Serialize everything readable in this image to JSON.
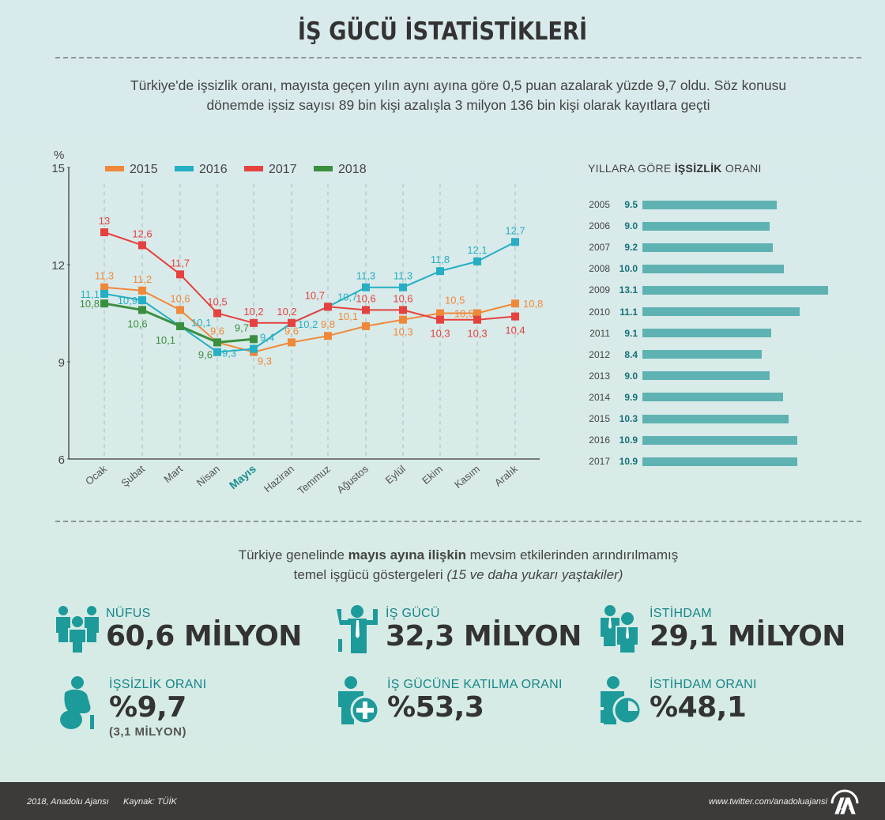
{
  "header": {
    "title": "İŞ GÜCÜ İSTATİSTİKLERİ",
    "intro_line1": "Türkiye'de işsizlik oranı, mayısta geçen yılın aynı ayına göre 0,5 puan azalarak yüzde 9,7 oldu. Söz konusu",
    "intro_line2": "dönemde işsiz sayısı 89 bin kişi azalışla 3 milyon 136 bin kişi olarak kayıtlara geçti"
  },
  "chart_data": [
    {
      "type": "line",
      "title": "",
      "ylabel": "%",
      "xlabel": "",
      "ylim": [
        6,
        15
      ],
      "yticks": [
        6,
        9,
        12,
        15
      ],
      "grid": "vertical dashed",
      "legend_position": "top",
      "highlight_category": "Mayıs",
      "categories": [
        "Ocak",
        "Şubat",
        "Mart",
        "Nisan",
        "Mayıs",
        "Haziran",
        "Temmuz",
        "Ağustos",
        "Eylül",
        "Ekim",
        "Kasım",
        "Aralık"
      ],
      "series": [
        {
          "name": "2015",
          "color": "#f0883a",
          "values": [
            11.3,
            11.2,
            10.6,
            9.6,
            9.3,
            9.6,
            9.8,
            10.1,
            10.3,
            10.5,
            10.5,
            10.8
          ],
          "labels": [
            "11,3",
            "11,2",
            "10,6",
            "9,6",
            "9,3",
            "9,6",
            "9,8",
            "10,1",
            "10,3",
            "10,5",
            "10,5",
            "10,8"
          ]
        },
        {
          "name": "2016",
          "color": "#25aec4",
          "values": [
            11.1,
            10.9,
            10.1,
            9.3,
            9.4,
            10.2,
            10.7,
            11.3,
            11.3,
            11.8,
            12.1,
            12.7
          ],
          "labels": [
            "11,1",
            "10,9",
            "10,1",
            "9,3",
            "9,4",
            "10,2",
            "10,7",
            "11,3",
            "11,3",
            "11,8",
            "12,1",
            "12,7"
          ]
        },
        {
          "name": "2017",
          "color": "#e5413f",
          "values": [
            13.0,
            12.6,
            11.7,
            10.5,
            10.2,
            10.2,
            10.7,
            10.6,
            10.6,
            10.3,
            10.3,
            10.4
          ],
          "labels": [
            "13",
            "12,6",
            "11,7",
            "10,5",
            "10,2",
            "10,2",
            "10,7",
            "10,6",
            "10,6",
            "10,3",
            "10,3",
            "10,4"
          ]
        },
        {
          "name": "2018",
          "color": "#3a8f3f",
          "values": [
            10.8,
            10.6,
            10.1,
            9.6,
            9.7
          ],
          "labels": [
            "10,8",
            "10,6",
            "10,1",
            "9,6",
            "9,7"
          ]
        }
      ]
    },
    {
      "type": "bar",
      "orientation": "horizontal",
      "title": "YILLARA GÖRE İŞSİZLİK ORANI",
      "title_plain_before": "YILLARA GÖRE ",
      "title_bold": "İŞSİZLİK",
      "title_plain_after": " ORANI",
      "bar_color": "#5fb2b2",
      "categories": [
        "2005",
        "2006",
        "2007",
        "2008",
        "2009",
        "2010",
        "2011",
        "2012",
        "2013",
        "2014",
        "2015",
        "2016",
        "2017"
      ],
      "values": [
        9.5,
        9.0,
        9.2,
        10.0,
        13.1,
        11.1,
        9.1,
        8.4,
        9.0,
        9.9,
        10.3,
        10.9,
        10.9
      ],
      "labels": [
        "9.5",
        "9.0",
        "9.2",
        "10.0",
        "13.1",
        "11.1",
        "9.1",
        "8.4",
        "9.0",
        "9.9",
        "10.3",
        "10.9",
        "10.9"
      ]
    }
  ],
  "indicators": {
    "intro_plain1": "Türkiye genelinde ",
    "intro_bold": "mayıs ayına ilişkin",
    "intro_plain2": " mevsim etkilerinden arındırılmamış",
    "intro_line2_plain": "temel işgücü göstergeleri ",
    "intro_line2_italic": "(15 ve daha yukarı yaştakiler)",
    "items": [
      {
        "label": "NÜFUS",
        "value": "60,6 MİLYON",
        "icon": "population-icon"
      },
      {
        "label": "İŞ GÜCÜ",
        "value": "32,3 MİLYON",
        "icon": "workforce-icon"
      },
      {
        "label": "İSTİHDAM",
        "value": "29,1 MİLYON",
        "icon": "employment-icon"
      },
      {
        "label": "İŞSİZLİK ORANI",
        "value": "%9,7",
        "sub": "(3,1 MİLYON)",
        "icon": "unemployed-person-icon"
      },
      {
        "label": "İŞ GÜCÜNE KATILMA ORANI",
        "value": "%53,3",
        "icon": "participation-plus-icon"
      },
      {
        "label": "İSTİHDAM ORANI",
        "value": "%48,1",
        "icon": "employment-pie-icon"
      }
    ]
  },
  "footer": {
    "copyright": "2018, Anadolu Ajansı",
    "source": "Kaynak: TÜİK",
    "twitter": "www.twitter.com/anadoluajansi",
    "logo": "AA"
  },
  "colors": {
    "accent_teal": "#17868a",
    "footer_bg": "#3d3b3a"
  }
}
